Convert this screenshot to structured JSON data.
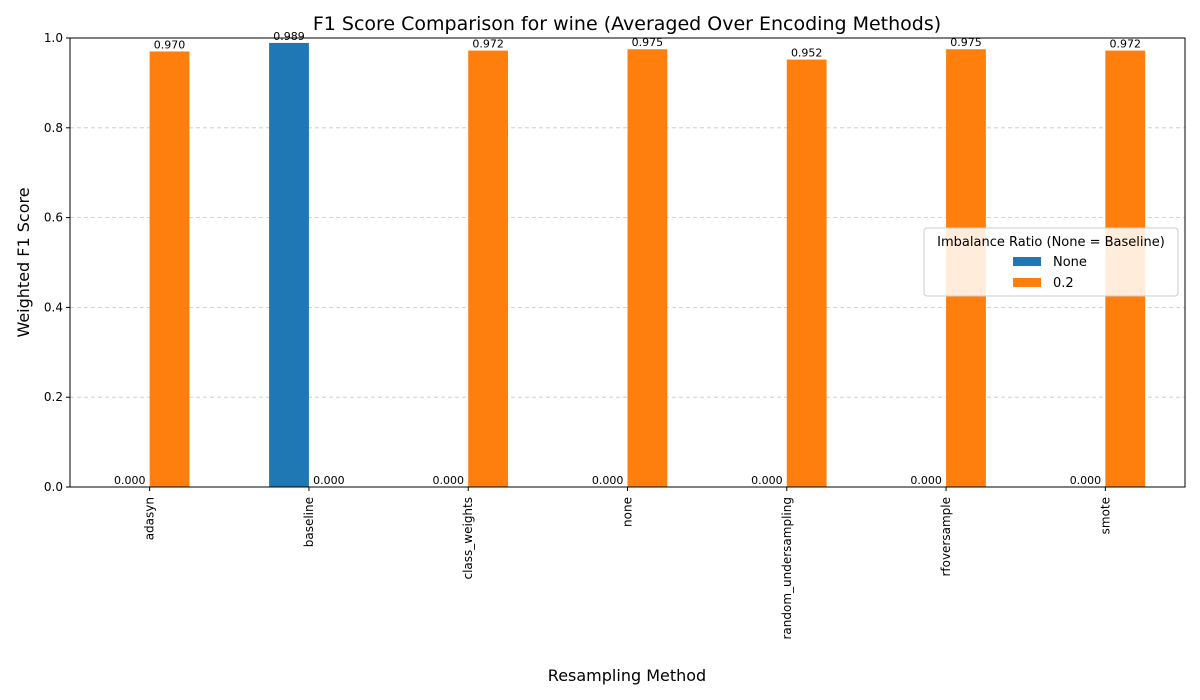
{
  "chart_data": {
    "type": "bar",
    "title": "F1 Score Comparison for wine (Averaged Over Encoding Methods)",
    "xlabel": "Resampling Method",
    "ylabel": "Weighted F1 Score",
    "ylim": [
      0,
      1.0
    ],
    "yticks": [
      "0.0",
      "0.2",
      "0.4",
      "0.6",
      "0.8",
      "1.0"
    ],
    "ytick_values": [
      0,
      0.2,
      0.4,
      0.6,
      0.8,
      1.0
    ],
    "grid": "y-dashed",
    "categories": [
      "adasyn",
      "baseline",
      "class_weights",
      "none",
      "random_undersampling",
      "rfoversample",
      "smote"
    ],
    "series": [
      {
        "name": "None",
        "color": "#1f77b4",
        "values": [
          0.0,
          0.989,
          0.0,
          0.0,
          0.0,
          0.0,
          0.0
        ],
        "labels": [
          "0.000",
          "0.989",
          "0.000",
          "0.000",
          "0.000",
          "0.000",
          "0.000"
        ]
      },
      {
        "name": "0.2",
        "color": "#ff7f0e",
        "values": [
          0.97,
          0.0,
          0.972,
          0.975,
          0.952,
          0.975,
          0.972
        ],
        "labels": [
          "0.970",
          "0.000",
          "0.972",
          "0.975",
          "0.952",
          "0.975",
          "0.972"
        ]
      }
    ],
    "legend": {
      "title": "Imbalance Ratio (None = Baseline)",
      "placement": "center-right"
    }
  }
}
